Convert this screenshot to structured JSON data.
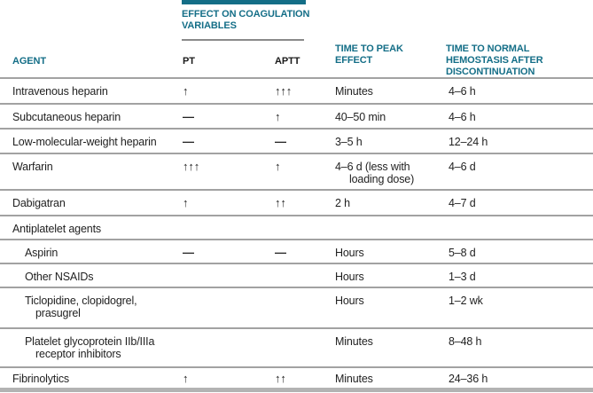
{
  "colors": {
    "accent_teal": "#146E87",
    "rule_gray": "#a2a2a2",
    "body_text": "#1f1f1f",
    "bottom_bar_gray": "#b3b3b3"
  },
  "table": {
    "group_header": "EFFECT ON COAGULATION VARIABLES",
    "columns": {
      "agent": "AGENT",
      "pt": "PT",
      "aptt": "APTT",
      "peak": "TIME TO PEAK EFFECT",
      "normal": "TIME TO NORMAL HEMOSTASIS AFTER DISCONTINUATION"
    },
    "rows": [
      {
        "agent": "Intravenous heparin",
        "pt": "↑",
        "aptt": "↑↑↑",
        "peak": "Minutes",
        "normal": "4–6 h"
      },
      {
        "agent": "Subcutaneous heparin",
        "pt": "—",
        "aptt": "↑",
        "peak": "40–50 min",
        "normal": "4–6 h"
      },
      {
        "agent": "Low-molecular-weight heparin",
        "pt": "—",
        "aptt": "—",
        "peak": "3–5 h",
        "normal": "12–24 h"
      },
      {
        "agent": "Warfarin",
        "pt": "↑↑↑",
        "aptt": "↑",
        "peak": "4–6 d (less with\nloading dose)",
        "normal": "4–6 d"
      },
      {
        "agent": "Dabigatran",
        "pt": "↑",
        "aptt": "↑↑",
        "peak": "2 h",
        "normal": "4–7 d"
      },
      {
        "agent": "Antiplatelet agents",
        "pt": "",
        "aptt": "",
        "peak": "",
        "normal": ""
      },
      {
        "agent": "Aspirin",
        "pt": "—",
        "aptt": "—",
        "peak": "Hours",
        "normal": "5–8 d"
      },
      {
        "agent": "Other NSAIDs",
        "pt": "",
        "aptt": "",
        "peak": "Hours",
        "normal": "1–3 d"
      },
      {
        "agent": "Ticlopidine, clopidogrel,\nprasugrel",
        "pt": "",
        "aptt": "",
        "peak": "Hours",
        "normal": "1–2 wk"
      },
      {
        "agent": "Platelet glycoprotein IIb/IIIa\nreceptor inhibitors",
        "pt": "",
        "aptt": "",
        "peak": "Minutes",
        "normal": "8–48 h"
      },
      {
        "agent": "Fibrinolytics",
        "pt": "↑",
        "aptt": "↑↑",
        "peak": "Minutes",
        "normal": "24–36 h"
      }
    ]
  }
}
